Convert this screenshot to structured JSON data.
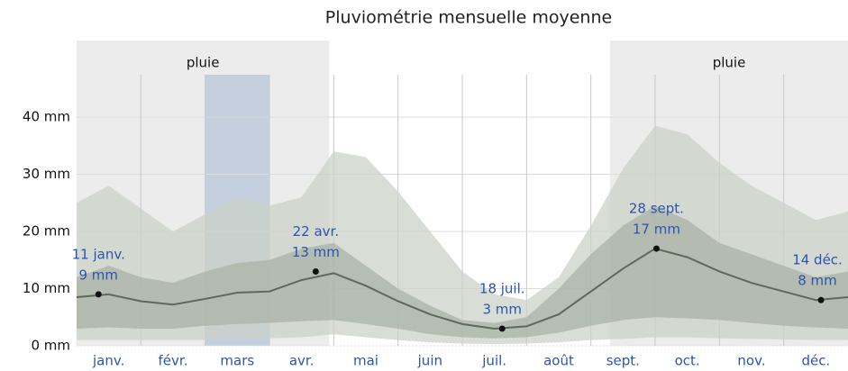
{
  "chart_data": {
    "type": "band-line",
    "title": "Pluviométrie mensuelle moyenne",
    "categories": [
      "janv.",
      "févr.",
      "mars",
      "avr.",
      "mai",
      "juin",
      "juil.",
      "août",
      "sept.",
      "oct.",
      "nov.",
      "déc."
    ],
    "xlim": [
      0,
      12
    ],
    "ylim": [
      0,
      53.4
    ],
    "yticks": [
      {
        "value": 0,
        "label": "0 mm"
      },
      {
        "value": 10,
        "label": "10 mm"
      },
      {
        "value": 20,
        "label": "20 mm"
      },
      {
        "value": 30,
        "label": "30 mm"
      },
      {
        "value": 40,
        "label": "40 mm"
      }
    ],
    "grid": true,
    "seasons": [
      {
        "label": "pluie",
        "start": 0,
        "end": 3.93
      },
      {
        "label": "pluie",
        "start": 8.3,
        "end": 12
      }
    ],
    "highlight": {
      "start": 2,
      "end": 3,
      "color": "#b7c7da"
    },
    "x": [
      0,
      0.5,
      1,
      1.5,
      2,
      2.5,
      3,
      3.5,
      4,
      4.5,
      5,
      5.5,
      6,
      6.5,
      7,
      7.5,
      8,
      8.5,
      9,
      9.5,
      10,
      10.5,
      11,
      11.5,
      12
    ],
    "bands": [
      {
        "color": "#cbd1c8",
        "upper": [
          25,
          28,
          24,
          20,
          23,
          26,
          24.5,
          26,
          34,
          33,
          27,
          20,
          13,
          9,
          8,
          12,
          21,
          31,
          38.5,
          37,
          32,
          28,
          25,
          22,
          23.5
        ],
        "lower": [
          1,
          1,
          1,
          1,
          1,
          1.2,
          1.3,
          1.5,
          2,
          1.5,
          1,
          0.6,
          0.4,
          0.3,
          0.4,
          0.6,
          1,
          1.2,
          1.5,
          1.5,
          1.3,
          1.2,
          1.1,
          1,
          1
        ]
      },
      {
        "color": "#a9b3a6",
        "upper": [
          12,
          14,
          12,
          11,
          13,
          14.5,
          15,
          17,
          18,
          14,
          10,
          7,
          4.5,
          4,
          5,
          10,
          16,
          21,
          24.5,
          22,
          18,
          16,
          14,
          12,
          13
        ],
        "lower": [
          3,
          3.2,
          3,
          3,
          3.5,
          3.8,
          4,
          4.3,
          4.5,
          3.8,
          3,
          2,
          1.5,
          1.3,
          1.5,
          2.3,
          3.5,
          4.5,
          5,
          4.8,
          4.5,
          4,
          3.5,
          3.2,
          3
        ]
      }
    ],
    "series": [
      {
        "color": "#5d6a59",
        "values": [
          8.5,
          9,
          7.8,
          7.2,
          8.2,
          9.3,
          9.5,
          11.5,
          12.7,
          10.5,
          7.8,
          5.5,
          3.8,
          3,
          3.4,
          5.5,
          9.5,
          13.5,
          17,
          15.5,
          13,
          11,
          9.5,
          8,
          8.5
        ]
      }
    ],
    "annotations": [
      {
        "x": 0.34,
        "date": "11 janv.",
        "value": 9,
        "value_label": "9 mm"
      },
      {
        "x": 3.72,
        "date": "22 avr.",
        "value": 13,
        "value_label": "13 mm"
      },
      {
        "x": 6.62,
        "date": "18 juil.",
        "value": 3,
        "value_label": "3 mm"
      },
      {
        "x": 9.02,
        "date": "28 sept.",
        "value": 17,
        "value_label": "17 mm"
      },
      {
        "x": 11.58,
        "date": "14 déc.",
        "value": 8,
        "value_label": "8 mm"
      }
    ]
  }
}
